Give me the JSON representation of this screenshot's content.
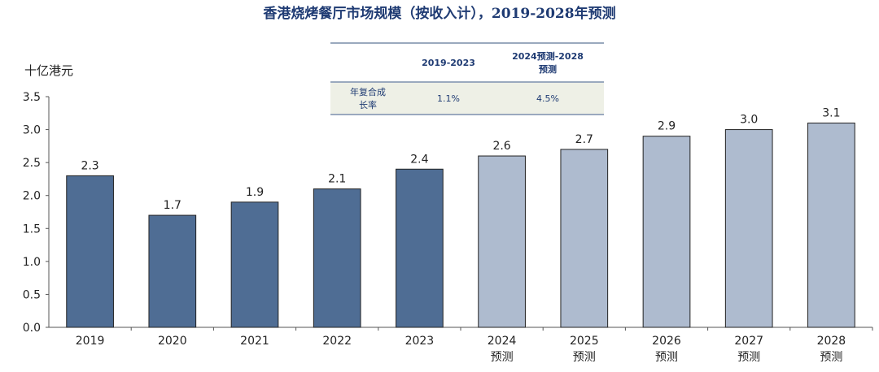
{
  "title": "香港烧烤餐厅市场规模（按收入计），2019-2028年预测",
  "y_unit": "十亿港元",
  "cagr_table": {
    "headers": [
      "",
      "2019-2023",
      "2024预测-2028\n预测"
    ],
    "row": [
      "年复合成\n长率",
      "1.1%",
      "4.5%"
    ]
  },
  "colors": {
    "historical": "#4f6d94",
    "forecast": "#aebbcf",
    "title": "#1f3b73"
  },
  "chart_data": {
    "type": "bar",
    "categories": [
      "2019",
      "2020",
      "2021",
      "2022",
      "2023",
      "2024\n预测",
      "2025\n预测",
      "2026\n预测",
      "2027\n预测",
      "2028\n预测"
    ],
    "values": [
      2.3,
      1.7,
      1.9,
      2.1,
      2.4,
      2.6,
      2.7,
      2.9,
      3.0,
      3.1
    ],
    "value_labels": [
      "2.3",
      "1.7",
      "1.9",
      "2.1",
      "2.4",
      "2.6",
      "2.7",
      "2.9",
      "3.0",
      "3.1"
    ],
    "forecast": [
      false,
      false,
      false,
      false,
      false,
      true,
      true,
      true,
      true,
      true
    ],
    "yticks": [
      "0.0",
      "0.5",
      "1.0",
      "1.5",
      "2.0",
      "2.5",
      "3.0",
      "3.5"
    ],
    "ylim": [
      0,
      3.5
    ],
    "grid": false,
    "legend": "none"
  }
}
